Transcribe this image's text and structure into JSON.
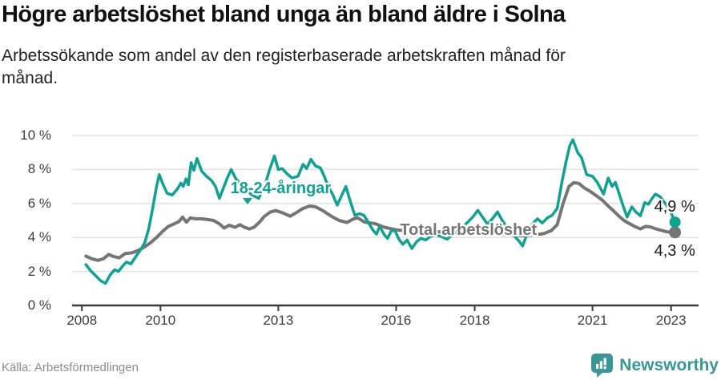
{
  "footer": {
    "source": "Källa: Arbetsförmedlingen",
    "brand": "Newsworthy"
  },
  "chart_data": {
    "type": "line",
    "title": "Högre arbetslöshet bland unga än bland äldre i Solna",
    "subtitle": "Arbetssökande som andel av den registerbaserade arbetskraften månad för månad.",
    "unit": "%",
    "xlim": [
      2007.75,
      2023.7
    ],
    "ylim": [
      0,
      10
    ],
    "grid": "horizontal",
    "colors": {
      "youth": "#11a192",
      "total": "#757575",
      "axis": "#3c3c3c",
      "gridline": "#e2e2e2",
      "end_label": "#1a1a1a",
      "brand": "#3a9596"
    },
    "y_ticks": [
      {
        "v": 0,
        "label": "0 %"
      },
      {
        "v": 2,
        "label": "2 %"
      },
      {
        "v": 4,
        "label": "4 %"
      },
      {
        "v": 6,
        "label": "6 %"
      },
      {
        "v": 8,
        "label": "8 %"
      },
      {
        "v": 10,
        "label": "10 %"
      }
    ],
    "x_ticks": [
      {
        "v": 2008,
        "label": "2008"
      },
      {
        "v": 2010,
        "label": "2010"
      },
      {
        "v": 2013,
        "label": "2013"
      },
      {
        "v": 2016,
        "label": "2016"
      },
      {
        "v": 2018,
        "label": "2018"
      },
      {
        "v": 2021,
        "label": "2021"
      },
      {
        "v": 2023,
        "label": "2023"
      }
    ],
    "annotations": [
      {
        "text": "18-24-åringar",
        "x": 2011.78,
        "y": 7.42,
        "color": "#11a192",
        "bold": true,
        "arrow": true
      },
      {
        "text": "Total arbetslöshet",
        "x": 2016.1,
        "y": 4.96,
        "color": "#757575",
        "bold": true
      },
      {
        "text": "4,9 %",
        "x": 2022.57,
        "y": 6.33,
        "color": "#1a1a1a"
      },
      {
        "text": "4,3 %",
        "x": 2022.57,
        "y": 3.74,
        "color": "#1a1a1a"
      }
    ],
    "series": [
      {
        "name": "Total arbetslöshet",
        "color": "#757575",
        "stroke_width": 4,
        "end_dot_radius": 7.5,
        "end_label": "4,3 %",
        "end_value": 4.3,
        "points": [
          [
            2008.1,
            2.9
          ],
          [
            2008.25,
            2.75
          ],
          [
            2008.4,
            2.65
          ],
          [
            2008.55,
            2.75
          ],
          [
            2008.68,
            3.0
          ],
          [
            2008.8,
            2.88
          ],
          [
            2008.95,
            2.8
          ],
          [
            2009.1,
            3.05
          ],
          [
            2009.28,
            3.1
          ],
          [
            2009.45,
            3.25
          ],
          [
            2009.6,
            3.45
          ],
          [
            2009.75,
            3.7
          ],
          [
            2009.9,
            4.0
          ],
          [
            2010.05,
            4.35
          ],
          [
            2010.2,
            4.65
          ],
          [
            2010.35,
            4.8
          ],
          [
            2010.48,
            4.95
          ],
          [
            2010.56,
            5.2
          ],
          [
            2010.66,
            4.9
          ],
          [
            2010.76,
            5.15
          ],
          [
            2010.9,
            5.1
          ],
          [
            2011.05,
            5.1
          ],
          [
            2011.2,
            5.05
          ],
          [
            2011.35,
            5.0
          ],
          [
            2011.5,
            4.8
          ],
          [
            2011.62,
            4.55
          ],
          [
            2011.75,
            4.72
          ],
          [
            2011.9,
            4.6
          ],
          [
            2012.02,
            4.75
          ],
          [
            2012.14,
            4.6
          ],
          [
            2012.26,
            4.5
          ],
          [
            2012.38,
            4.6
          ],
          [
            2012.52,
            4.9
          ],
          [
            2012.65,
            5.25
          ],
          [
            2012.8,
            5.5
          ],
          [
            2012.93,
            5.58
          ],
          [
            2013.05,
            5.5
          ],
          [
            2013.18,
            5.38
          ],
          [
            2013.3,
            5.25
          ],
          [
            2013.45,
            5.45
          ],
          [
            2013.62,
            5.7
          ],
          [
            2013.8,
            5.85
          ],
          [
            2013.95,
            5.8
          ],
          [
            2014.15,
            5.55
          ],
          [
            2014.35,
            5.25
          ],
          [
            2014.55,
            5.0
          ],
          [
            2014.75,
            4.88
          ],
          [
            2014.92,
            5.1
          ],
          [
            2015.02,
            5.15
          ],
          [
            2015.2,
            4.9
          ],
          [
            2015.45,
            4.82
          ],
          [
            2015.7,
            4.6
          ],
          [
            2016.0,
            4.45
          ],
          [
            2016.3,
            4.38
          ],
          [
            2016.6,
            4.4
          ],
          [
            2017.0,
            4.35
          ],
          [
            2017.4,
            4.28
          ],
          [
            2017.8,
            4.3
          ],
          [
            2018.1,
            4.28
          ],
          [
            2018.5,
            4.2
          ],
          [
            2018.9,
            4.15
          ],
          [
            2019.2,
            4.1
          ],
          [
            2019.5,
            4.15
          ],
          [
            2019.75,
            4.22
          ],
          [
            2019.95,
            4.4
          ],
          [
            2020.1,
            4.75
          ],
          [
            2020.25,
            6.0
          ],
          [
            2020.4,
            7.0
          ],
          [
            2020.52,
            7.22
          ],
          [
            2020.65,
            7.18
          ],
          [
            2020.8,
            6.9
          ],
          [
            2020.95,
            6.7
          ],
          [
            2021.1,
            6.45
          ],
          [
            2021.25,
            6.2
          ],
          [
            2021.4,
            5.85
          ],
          [
            2021.52,
            5.6
          ],
          [
            2021.65,
            5.3
          ],
          [
            2021.8,
            5.0
          ],
          [
            2021.95,
            4.8
          ],
          [
            2022.1,
            4.62
          ],
          [
            2022.22,
            4.5
          ],
          [
            2022.35,
            4.65
          ],
          [
            2022.48,
            4.62
          ],
          [
            2022.62,
            4.5
          ],
          [
            2022.78,
            4.4
          ],
          [
            2022.92,
            4.32
          ],
          [
            2023.1,
            4.3
          ]
        ]
      },
      {
        "name": "18-24-åringar",
        "color": "#11a192",
        "stroke_width": 3.5,
        "end_dot_radius": 7,
        "end_label": "4,9 %",
        "end_value": 4.9,
        "points": [
          [
            2008.1,
            2.4
          ],
          [
            2008.22,
            2.05
          ],
          [
            2008.35,
            1.75
          ],
          [
            2008.48,
            1.45
          ],
          [
            2008.6,
            1.3
          ],
          [
            2008.72,
            1.8
          ],
          [
            2008.83,
            2.1
          ],
          [
            2008.93,
            2.0
          ],
          [
            2009.03,
            2.3
          ],
          [
            2009.13,
            2.55
          ],
          [
            2009.25,
            2.45
          ],
          [
            2009.38,
            2.9
          ],
          [
            2009.5,
            3.3
          ],
          [
            2009.6,
            3.7
          ],
          [
            2009.7,
            4.5
          ],
          [
            2009.8,
            5.7
          ],
          [
            2009.9,
            7.0
          ],
          [
            2009.97,
            7.7
          ],
          [
            2010.07,
            7.1
          ],
          [
            2010.17,
            6.6
          ],
          [
            2010.3,
            6.5
          ],
          [
            2010.43,
            6.85
          ],
          [
            2010.52,
            7.2
          ],
          [
            2010.58,
            7.0
          ],
          [
            2010.65,
            7.45
          ],
          [
            2010.71,
            7.1
          ],
          [
            2010.78,
            8.4
          ],
          [
            2010.85,
            7.95
          ],
          [
            2010.93,
            8.65
          ],
          [
            2011.05,
            7.9
          ],
          [
            2011.17,
            7.6
          ],
          [
            2011.3,
            7.35
          ],
          [
            2011.4,
            7.0
          ],
          [
            2011.5,
            6.3
          ],
          [
            2011.6,
            6.9
          ],
          [
            2011.7,
            7.5
          ],
          [
            2011.8,
            8.0
          ],
          [
            2011.92,
            7.45
          ],
          [
            2012.03,
            7.2
          ],
          [
            2012.17,
            6.8
          ],
          [
            2012.33,
            6.5
          ],
          [
            2012.5,
            6.3
          ],
          [
            2012.65,
            7.0
          ],
          [
            2012.78,
            8.0
          ],
          [
            2012.9,
            8.8
          ],
          [
            2013.0,
            8.0
          ],
          [
            2013.1,
            8.05
          ],
          [
            2013.22,
            7.75
          ],
          [
            2013.35,
            7.5
          ],
          [
            2013.5,
            7.6
          ],
          [
            2013.63,
            8.3
          ],
          [
            2013.72,
            8.05
          ],
          [
            2013.83,
            8.6
          ],
          [
            2013.95,
            8.2
          ],
          [
            2014.07,
            8.1
          ],
          [
            2014.17,
            7.6
          ],
          [
            2014.27,
            7.0
          ],
          [
            2014.37,
            6.6
          ],
          [
            2014.5,
            5.9
          ],
          [
            2014.62,
            6.5
          ],
          [
            2014.72,
            7.0
          ],
          [
            2014.85,
            6.0
          ],
          [
            2014.95,
            5.3
          ],
          [
            2015.07,
            5.4
          ],
          [
            2015.18,
            5.3
          ],
          [
            2015.3,
            4.85
          ],
          [
            2015.42,
            4.4
          ],
          [
            2015.5,
            4.2
          ],
          [
            2015.58,
            4.65
          ],
          [
            2015.7,
            4.15
          ],
          [
            2015.78,
            3.95
          ],
          [
            2015.88,
            4.4
          ],
          [
            2015.97,
            4.4
          ],
          [
            2016.07,
            3.9
          ],
          [
            2016.17,
            3.6
          ],
          [
            2016.28,
            3.85
          ],
          [
            2016.4,
            3.35
          ],
          [
            2016.52,
            3.75
          ],
          [
            2016.63,
            3.95
          ],
          [
            2016.75,
            3.85
          ],
          [
            2016.87,
            4.05
          ],
          [
            2017.0,
            4.15
          ],
          [
            2017.15,
            4.05
          ],
          [
            2017.3,
            3.9
          ],
          [
            2017.5,
            4.3
          ],
          [
            2017.65,
            4.5
          ],
          [
            2017.8,
            4.85
          ],
          [
            2017.95,
            5.2
          ],
          [
            2018.08,
            5.6
          ],
          [
            2018.2,
            5.2
          ],
          [
            2018.33,
            4.78
          ],
          [
            2018.45,
            5.1
          ],
          [
            2018.58,
            5.5
          ],
          [
            2018.7,
            5.0
          ],
          [
            2018.82,
            4.6
          ],
          [
            2019.0,
            4.1
          ],
          [
            2019.12,
            3.8
          ],
          [
            2019.22,
            3.5
          ],
          [
            2019.35,
            4.3
          ],
          [
            2019.47,
            4.8
          ],
          [
            2019.6,
            5.1
          ],
          [
            2019.72,
            4.85
          ],
          [
            2019.85,
            5.15
          ],
          [
            2019.97,
            5.3
          ],
          [
            2020.1,
            5.7
          ],
          [
            2020.22,
            7.25
          ],
          [
            2020.32,
            8.4
          ],
          [
            2020.42,
            9.4
          ],
          [
            2020.5,
            9.75
          ],
          [
            2020.62,
            9.0
          ],
          [
            2020.72,
            8.7
          ],
          [
            2020.85,
            7.7
          ],
          [
            2021.0,
            7.6
          ],
          [
            2021.12,
            7.25
          ],
          [
            2021.28,
            6.55
          ],
          [
            2021.4,
            7.5
          ],
          [
            2021.5,
            7.0
          ],
          [
            2021.58,
            7.25
          ],
          [
            2021.68,
            6.55
          ],
          [
            2021.78,
            5.85
          ],
          [
            2021.88,
            5.2
          ],
          [
            2022.0,
            5.8
          ],
          [
            2022.1,
            5.5
          ],
          [
            2022.22,
            5.28
          ],
          [
            2022.33,
            6.05
          ],
          [
            2022.42,
            5.95
          ],
          [
            2022.52,
            6.3
          ],
          [
            2022.6,
            6.55
          ],
          [
            2022.72,
            6.4
          ],
          [
            2022.87,
            5.95
          ],
          [
            2023.0,
            5.45
          ],
          [
            2023.1,
            4.9
          ]
        ]
      }
    ]
  }
}
